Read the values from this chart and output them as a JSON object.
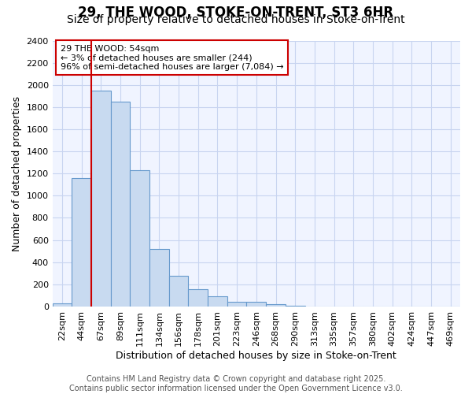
{
  "title1": "29, THE WOOD, STOKE-ON-TRENT, ST3 6HR",
  "title2": "Size of property relative to detached houses in Stoke-on-Trent",
  "xlabel": "Distribution of detached houses by size in Stoke-on-Trent",
  "ylabel": "Number of detached properties",
  "bar_values": [
    30,
    1160,
    1950,
    1850,
    1230,
    520,
    280,
    155,
    90,
    45,
    40,
    18,
    5,
    2,
    1,
    1,
    1,
    1,
    1,
    1,
    1
  ],
  "all_labels": [
    "22sqm",
    "44sqm",
    "67sqm",
    "89sqm",
    "111sqm",
    "134sqm",
    "156sqm",
    "178sqm",
    "201sqm",
    "223sqm",
    "246sqm",
    "268sqm",
    "290sqm",
    "313sqm",
    "335sqm",
    "357sqm",
    "380sqm",
    "402sqm",
    "424sqm",
    "447sqm",
    "469sqm"
  ],
  "bar_color": "#c8daf0",
  "bar_edge_color": "#6699cc",
  "red_line_x": 1.5,
  "annotation_text": "29 THE WOOD: 54sqm\n← 3% of detached houses are smaller (244)\n96% of semi-detached houses are larger (7,084) →",
  "annotation_box_color": "#ffffff",
  "annotation_edge_color": "#cc0000",
  "ylim": [
    0,
    2400
  ],
  "yticks": [
    0,
    200,
    400,
    600,
    800,
    1000,
    1200,
    1400,
    1600,
    1800,
    2000,
    2200,
    2400
  ],
  "footer_text": "Contains HM Land Registry data © Crown copyright and database right 2025.\nContains public sector information licensed under the Open Government Licence v3.0.",
  "bg_color": "#ffffff",
  "plot_bg_color": "#f0f4ff",
  "grid_color": "#c8d4f0",
  "title1_fontsize": 12,
  "title2_fontsize": 10,
  "axis_label_fontsize": 9,
  "tick_fontsize": 8,
  "footer_fontsize": 7,
  "annot_fontsize": 8
}
